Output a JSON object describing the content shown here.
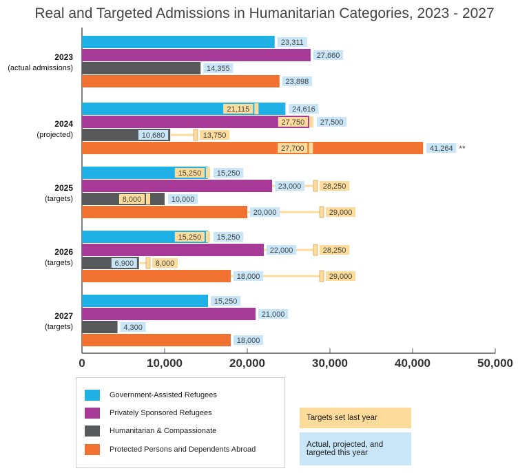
{
  "chart_data": {
    "type": "bar",
    "orientation": "horizontal",
    "title": "Real and Targeted Admissions in Humanitarian Categories, 2023 - 2027",
    "xlim": [
      0,
      50000
    ],
    "x_ticks": [
      "0",
      "10,000",
      "20,000",
      "30,000",
      "40,000",
      "50,000"
    ],
    "x_tick_values": [
      0,
      10000,
      20000,
      30000,
      40000,
      50000
    ],
    "grid": false,
    "groups": [
      {
        "year": "2023",
        "sub": "(actual admissions)"
      },
      {
        "year": "2024",
        "sub": "(projected)"
      },
      {
        "year": "2025",
        "sub": "(targets)"
      },
      {
        "year": "2026",
        "sub": "(targets)"
      },
      {
        "year": "2027",
        "sub": "(targets)"
      }
    ],
    "series": [
      {
        "name": "Government-Assisted Refugees",
        "color": "#1fb0e6",
        "values": [
          23311,
          24616,
          15250,
          15250,
          15250
        ],
        "labels": [
          "23,311",
          "24,616",
          "15,250",
          "15,250",
          "15,250"
        ],
        "targets": [
          null,
          21115,
          15250,
          15250,
          null
        ],
        "target_labels": [
          null,
          "21,115",
          "15,250",
          "15,250",
          null
        ]
      },
      {
        "name": "Privately Sponsored Refugees",
        "color": "#a63a96",
        "values": [
          27660,
          27500,
          23000,
          22000,
          21000
        ],
        "labels": [
          "27,660",
          "27,500",
          "23,000",
          "22,000",
          "21,000"
        ],
        "targets": [
          null,
          27750,
          28250,
          28250,
          null
        ],
        "target_labels": [
          null,
          "27,750",
          "28,250",
          "28,250",
          null
        ]
      },
      {
        "name": "Humanitarian & Compassionate",
        "color": "#58595b",
        "values": [
          14355,
          10680,
          10000,
          6900,
          4300
        ],
        "labels": [
          "14,355",
          "10,680",
          "10,000",
          "6,900",
          "4,300"
        ],
        "targets": [
          null,
          13750,
          8000,
          8000,
          null
        ],
        "target_labels": [
          null,
          "13,750",
          "8,000",
          "8,000",
          null
        ]
      },
      {
        "name": "Protected Persons and Dependents Abroad",
        "color": "#f07130",
        "values": [
          23898,
          41264,
          20000,
          18000,
          18000
        ],
        "labels": [
          "23,898",
          "41,264",
          "20,000",
          "18,000",
          "18,000"
        ],
        "targets": [
          null,
          27700,
          29000,
          29000,
          null
        ],
        "target_labels": [
          null,
          "27,700",
          "29,000",
          "29,000",
          null
        ]
      }
    ],
    "annotation": "**",
    "key": {
      "target_label": "Targets set last year",
      "target_color": "#fddb9a",
      "actual_label": "Actual, projected, and targeted this year",
      "actual_color": "#c9e6f8"
    }
  }
}
